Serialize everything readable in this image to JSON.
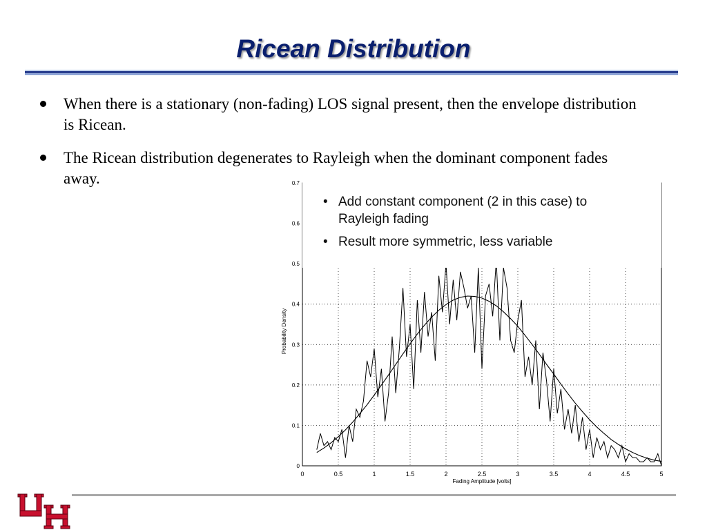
{
  "title": "Ricean Distribution",
  "bullets": [
    "When there is a stationary (non-fading)  LOS signal present, then the envelope distribution is Ricean.",
    "The Ricean distribution degenerates to Rayleigh when the dominant component fades away."
  ],
  "annotation": {
    "items": [
      "Add constant component (2 in this case) to Rayleigh fading",
      "Result more symmetric, less variable"
    ]
  },
  "colors": {
    "title": "#0a1f6e",
    "rule": "#2a3f8f",
    "logo": "#c8102e"
  },
  "logo_icon": "university-logo-icon",
  "chart_data": {
    "type": "line",
    "xlabel": "Fading Amplitude [volts]",
    "ylabel": "Probability Density",
    "xlim": [
      0,
      5
    ],
    "ylim": [
      0,
      0.7
    ],
    "xticks": [
      "0",
      "0.5",
      "1",
      "1.5",
      "2",
      "2.5",
      "3",
      "3.5",
      "4",
      "4.5",
      "5"
    ],
    "yticks": [
      "0",
      "0.1",
      "0.2",
      "0.3",
      "0.4",
      "0.5",
      "0.6",
      "0.7"
    ],
    "grid": true,
    "series": [
      {
        "x": [
          0.2,
          0.25,
          0.3,
          0.35,
          0.4,
          0.45,
          0.5,
          0.55,
          0.6,
          0.65,
          0.7,
          0.75,
          0.8,
          0.85,
          0.9,
          0.95,
          1.0,
          1.05,
          1.1,
          1.15,
          1.2,
          1.25,
          1.3,
          1.35,
          1.4,
          1.45,
          1.5,
          1.55,
          1.6,
          1.65,
          1.7,
          1.75,
          1.8,
          1.85,
          1.9,
          1.95,
          2.0,
          2.05,
          2.1,
          2.15,
          2.2,
          2.25,
          2.3,
          2.35,
          2.4,
          2.45,
          2.5,
          2.55,
          2.6,
          2.65,
          2.7,
          2.75,
          2.8,
          2.85,
          2.9,
          2.95,
          3.0,
          3.05,
          3.1,
          3.15,
          3.2,
          3.25,
          3.3,
          3.35,
          3.4,
          3.45,
          3.5,
          3.55,
          3.6,
          3.65,
          3.7,
          3.75,
          3.8,
          3.85,
          3.9,
          3.95,
          4.0,
          4.05,
          4.1,
          4.15,
          4.2,
          4.25,
          4.3,
          4.35,
          4.4,
          4.45,
          4.5,
          4.55,
          4.6,
          4.65,
          4.7,
          4.75,
          4.8,
          4.85,
          4.9,
          4.95,
          5.0
        ],
        "y": [
          0.04,
          0.08,
          0.05,
          0.06,
          0.04,
          0.07,
          0.06,
          0.09,
          0.02,
          0.1,
          0.06,
          0.14,
          0.12,
          0.16,
          0.26,
          0.22,
          0.29,
          0.17,
          0.24,
          0.11,
          0.18,
          0.32,
          0.18,
          0.29,
          0.44,
          0.27,
          0.35,
          0.19,
          0.41,
          0.28,
          0.43,
          0.32,
          0.38,
          0.26,
          0.47,
          0.38,
          0.5,
          0.35,
          0.46,
          0.36,
          0.48,
          0.44,
          0.39,
          0.42,
          0.28,
          0.49,
          0.24,
          0.42,
          0.45,
          0.37,
          0.51,
          0.31,
          0.49,
          0.44,
          0.31,
          0.28,
          0.36,
          0.41,
          0.22,
          0.27,
          0.2,
          0.31,
          0.14,
          0.28,
          0.21,
          0.11,
          0.24,
          0.13,
          0.19,
          0.09,
          0.14,
          0.08,
          0.15,
          0.06,
          0.12,
          0.04,
          0.09,
          0.02,
          0.07,
          0.04,
          0.06,
          0.02,
          0.05,
          0.04,
          0.02,
          0.05,
          0.01,
          0.03,
          0.02,
          0.02,
          0.01,
          0.01,
          0.02,
          0.01,
          0.01,
          0.03,
          0.0
        ]
      },
      {
        "x": [
          0.2,
          0.3,
          0.4,
          0.5,
          0.6,
          0.7,
          0.8,
          0.9,
          1.0,
          1.1,
          1.2,
          1.3,
          1.4,
          1.5,
          1.6,
          1.7,
          1.8,
          1.9,
          2.0,
          2.1,
          2.2,
          2.3,
          2.4,
          2.5,
          2.6,
          2.7,
          2.8,
          2.9,
          3.0,
          3.1,
          3.2,
          3.3,
          3.4,
          3.5,
          3.6,
          3.7,
          3.8,
          3.9,
          4.0,
          4.1,
          4.2,
          4.3,
          4.4,
          4.5,
          4.6,
          4.7,
          4.8,
          4.9,
          5.0
        ],
        "y": [
          0.033,
          0.044,
          0.057,
          0.072,
          0.089,
          0.108,
          0.129,
          0.151,
          0.175,
          0.2,
          0.225,
          0.251,
          0.277,
          0.302,
          0.326,
          0.348,
          0.368,
          0.385,
          0.399,
          0.41,
          0.417,
          0.42,
          0.419,
          0.415,
          0.407,
          0.396,
          0.381,
          0.364,
          0.345,
          0.323,
          0.3,
          0.276,
          0.251,
          0.227,
          0.202,
          0.178,
          0.155,
          0.134,
          0.114,
          0.096,
          0.08,
          0.065,
          0.053,
          0.042,
          0.033,
          0.025,
          0.019,
          0.014,
          0.011
        ]
      }
    ]
  }
}
